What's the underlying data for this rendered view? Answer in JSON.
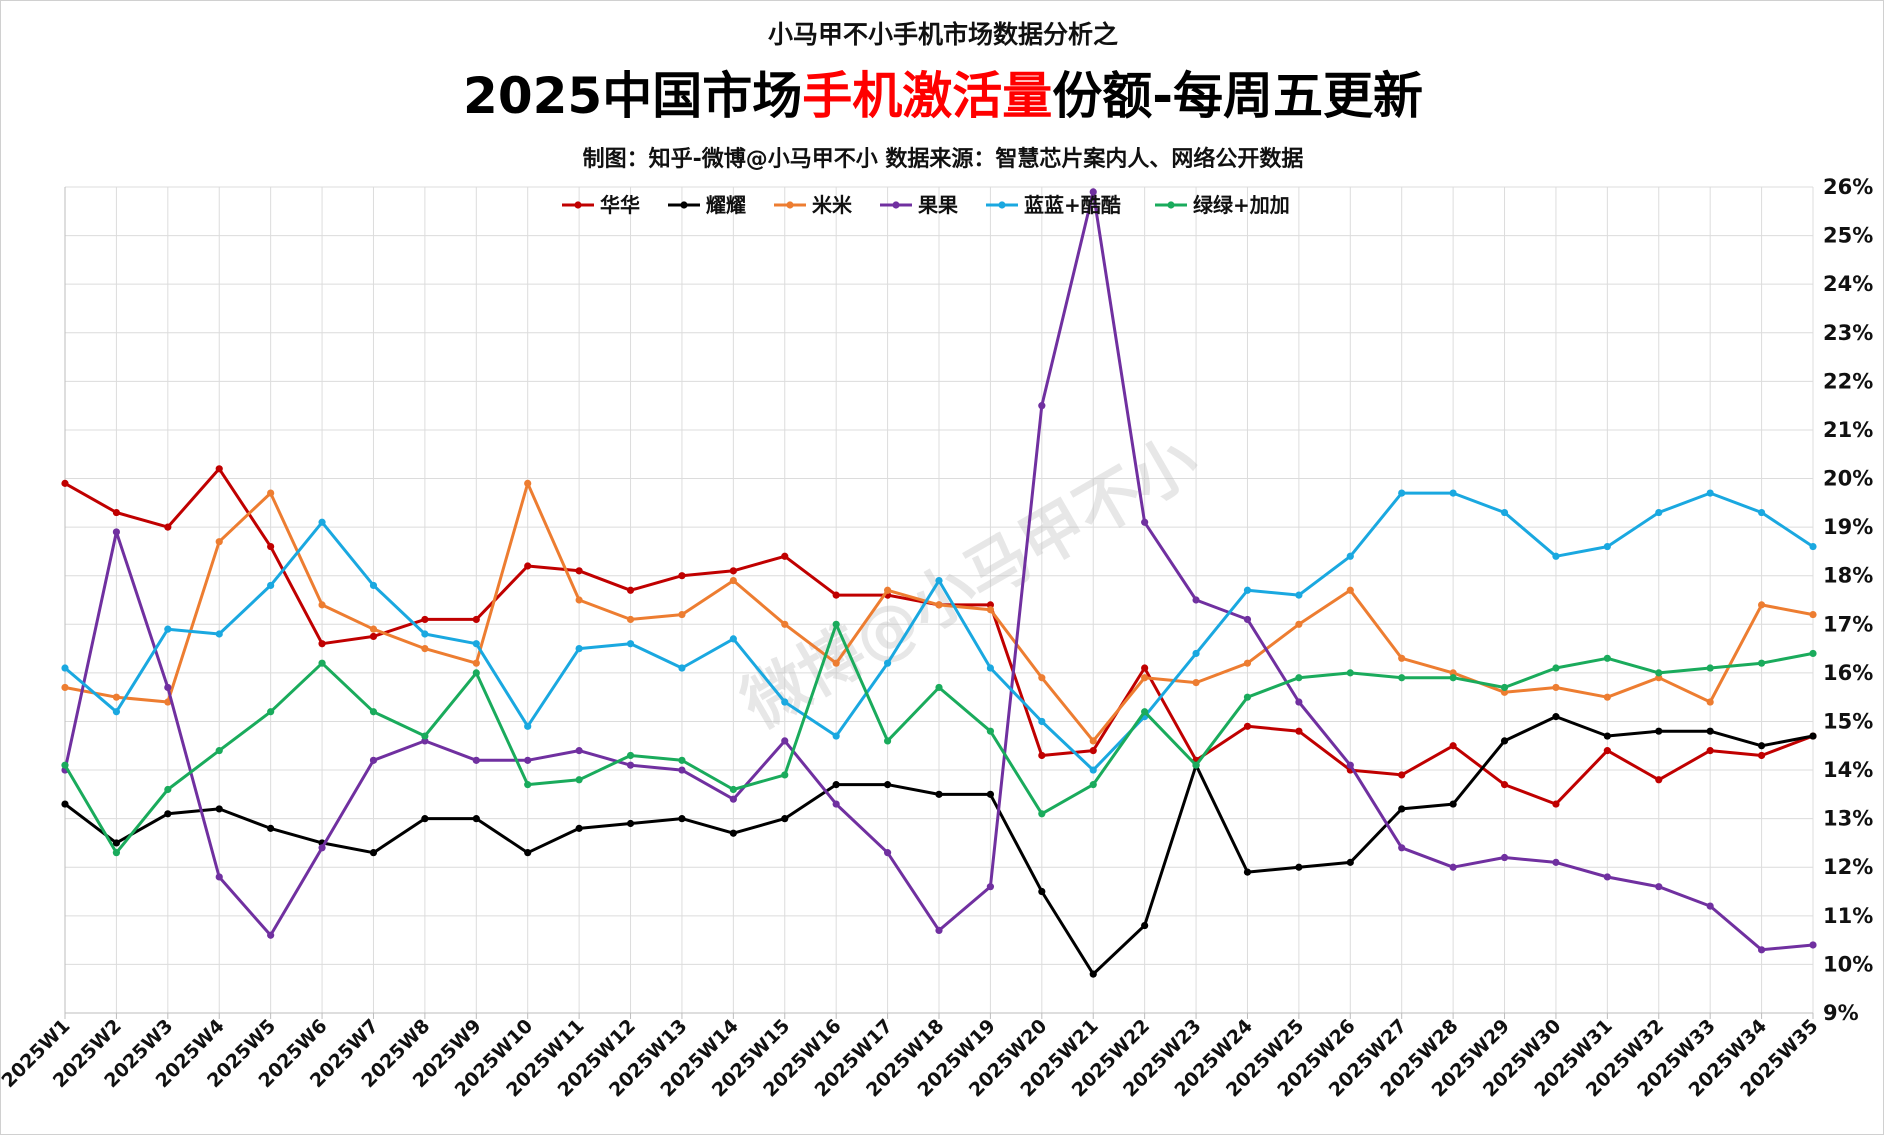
{
  "header": {
    "supertitle": "小马甲不小手机市场数据分析之",
    "title_prefix": "2025中国市场",
    "title_accent": "手机激活量",
    "title_suffix": "份额-每周五更新",
    "subtitle": "制图：知乎-微博@小马甲不小   数据来源：智慧芯片案内人、网络公开数据",
    "accent_color": "#ff0000"
  },
  "watermark": "微博@小马甲不小",
  "chart_data": {
    "type": "line",
    "title": "2025中国市场手机激活量份额-每周五更新",
    "xlabel": "",
    "ylabel": "",
    "ylim": [
      9,
      26
    ],
    "y_axis_position": "right",
    "y_tick_labels": [
      "9%",
      "10%",
      "11%",
      "12%",
      "13%",
      "14%",
      "15%",
      "16%",
      "17%",
      "18%",
      "19%",
      "20%",
      "21%",
      "22%",
      "23%",
      "24%",
      "25%",
      "26%"
    ],
    "grid": true,
    "legend_position": "top-center",
    "categories": [
      "2025W1",
      "2025W2",
      "2025W3",
      "2025W4",
      "2025W5",
      "2025W6",
      "2025W7",
      "2025W8",
      "2025W9",
      "2025W10",
      "2025W11",
      "2025W12",
      "2025W13",
      "2025W14",
      "2025W15",
      "2025W16",
      "2025W17",
      "2025W18",
      "2025W19",
      "2025W20",
      "2025W21",
      "2025W22",
      "2025W23",
      "2025W24",
      "2025W25",
      "2025W26",
      "2025W27",
      "2025W28",
      "2025W29",
      "2025W30",
      "2025W31",
      "2025W32",
      "2025W33",
      "2025W34",
      "2025W35"
    ],
    "series": [
      {
        "name": "华华",
        "color": "#c00000",
        "values": [
          19.9,
          19.3,
          19.0,
          20.2,
          18.6,
          16.6,
          16.75,
          17.1,
          17.1,
          18.2,
          18.1,
          17.7,
          18.0,
          18.1,
          18.4,
          17.6,
          17.6,
          17.4,
          17.4,
          14.3,
          14.4,
          16.1,
          14.2,
          14.9,
          14.8,
          14.0,
          13.9,
          14.5,
          13.7,
          13.3,
          14.4,
          13.8,
          14.4,
          14.3,
          14.7
        ]
      },
      {
        "name": "耀耀",
        "color": "#000000",
        "values": [
          13.3,
          12.5,
          13.1,
          13.2,
          12.8,
          12.5,
          12.3,
          13.0,
          13.0,
          12.3,
          12.8,
          12.9,
          13.0,
          12.7,
          13.0,
          13.7,
          13.7,
          13.5,
          13.5,
          11.5,
          9.8,
          10.8,
          14.1,
          11.9,
          12.0,
          12.1,
          13.2,
          13.3,
          14.6,
          15.1,
          14.7,
          14.8,
          14.8,
          14.5,
          14.7
        ]
      },
      {
        "name": "米米",
        "color": "#ed7d31",
        "values": [
          15.7,
          15.5,
          15.4,
          18.7,
          19.7,
          17.4,
          16.9,
          16.5,
          16.2,
          19.9,
          17.5,
          17.1,
          17.2,
          17.9,
          17.0,
          16.2,
          17.7,
          17.4,
          17.3,
          15.9,
          14.6,
          15.9,
          15.8,
          16.2,
          17.0,
          17.7,
          16.3,
          16.0,
          15.6,
          15.7,
          15.5,
          15.9,
          15.4,
          17.4,
          17.2
        ]
      },
      {
        "name": "果果",
        "color": "#7030a0",
        "values": [
          14.0,
          18.9,
          15.7,
          11.8,
          10.6,
          12.4,
          14.2,
          14.6,
          14.2,
          14.2,
          14.4,
          14.1,
          14.0,
          13.4,
          14.6,
          13.3,
          12.3,
          10.7,
          11.6,
          21.5,
          25.9,
          19.1,
          17.5,
          17.1,
          15.4,
          14.1,
          12.4,
          12.0,
          12.2,
          12.1,
          11.8,
          11.6,
          11.2,
          10.3,
          10.4
        ]
      },
      {
        "name": "蓝蓝+酷酷",
        "color": "#1aa8e0",
        "values": [
          16.1,
          15.2,
          16.9,
          16.8,
          17.8,
          19.1,
          17.8,
          16.8,
          16.6,
          14.9,
          16.5,
          16.6,
          16.1,
          16.7,
          15.4,
          14.7,
          16.2,
          17.9,
          16.1,
          15.0,
          14.0,
          15.1,
          16.4,
          17.7,
          17.6,
          18.4,
          19.7,
          19.7,
          19.3,
          18.4,
          18.6,
          19.3,
          19.7,
          19.3,
          18.6
        ]
      },
      {
        "name": "绿绿+加加",
        "color": "#1aab5c",
        "values": [
          14.1,
          12.3,
          13.6,
          14.4,
          15.2,
          16.2,
          15.2,
          14.7,
          16.0,
          13.7,
          13.8,
          14.3,
          14.2,
          13.6,
          13.9,
          17.0,
          14.6,
          15.7,
          14.8,
          13.1,
          13.7,
          15.2,
          14.1,
          15.5,
          15.9,
          16.0,
          15.9,
          15.9,
          15.7,
          16.1,
          16.3,
          16.0,
          16.1,
          16.2,
          16.4
        ]
      }
    ]
  }
}
